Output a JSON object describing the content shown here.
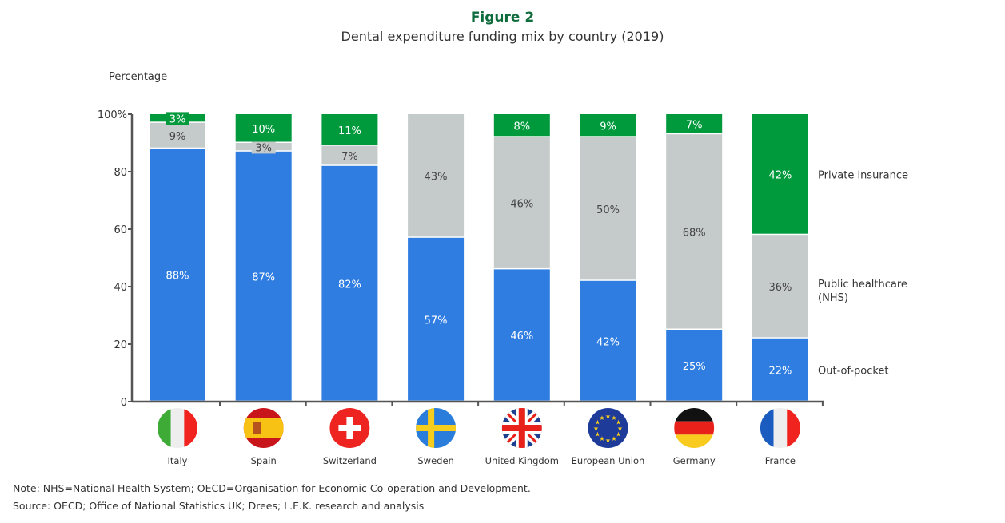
{
  "chart_data": {
    "type": "bar",
    "stacked": true,
    "title": "Figure 2",
    "subtitle": "Dental expenditure funding mix by country (2019)",
    "ylabel": "Percentage",
    "ylim": [
      0,
      100
    ],
    "yticks": [
      "0",
      "20",
      "40",
      "60",
      "80",
      "100%"
    ],
    "grid": false,
    "legend_placement": "right",
    "categories": [
      "Italy",
      "Spain",
      "Switzerland",
      "Sweden",
      "United Kingdom",
      "European Union",
      "Germany",
      "France"
    ],
    "series": [
      {
        "name": "Out-of-pocket",
        "color": "#2f7de1",
        "values": [
          88,
          87,
          82,
          57,
          46,
          42,
          25,
          22
        ]
      },
      {
        "name": "Public healthcare (NHS)",
        "color": "#c5cbca",
        "values": [
          9,
          3,
          7,
          43,
          46,
          50,
          68,
          36
        ]
      },
      {
        "name": "Private insurance",
        "color": "#009a3d",
        "values": [
          3,
          10,
          11,
          0,
          8,
          9,
          7,
          42
        ]
      }
    ],
    "flag_icons": [
      "italy-flag-icon",
      "spain-flag-icon",
      "switzerland-flag-icon",
      "sweden-flag-icon",
      "united-kingdom-flag-icon",
      "european-union-flag-icon",
      "germany-flag-icon",
      "france-flag-icon"
    ]
  },
  "notes": {
    "note": "Note: NHS=National Health System; OECD=Organisation for Economic Co-operation and Development.",
    "source": "Source: OECD; Office of National Statistics UK; Drees; L.E.K. research and analysis"
  }
}
